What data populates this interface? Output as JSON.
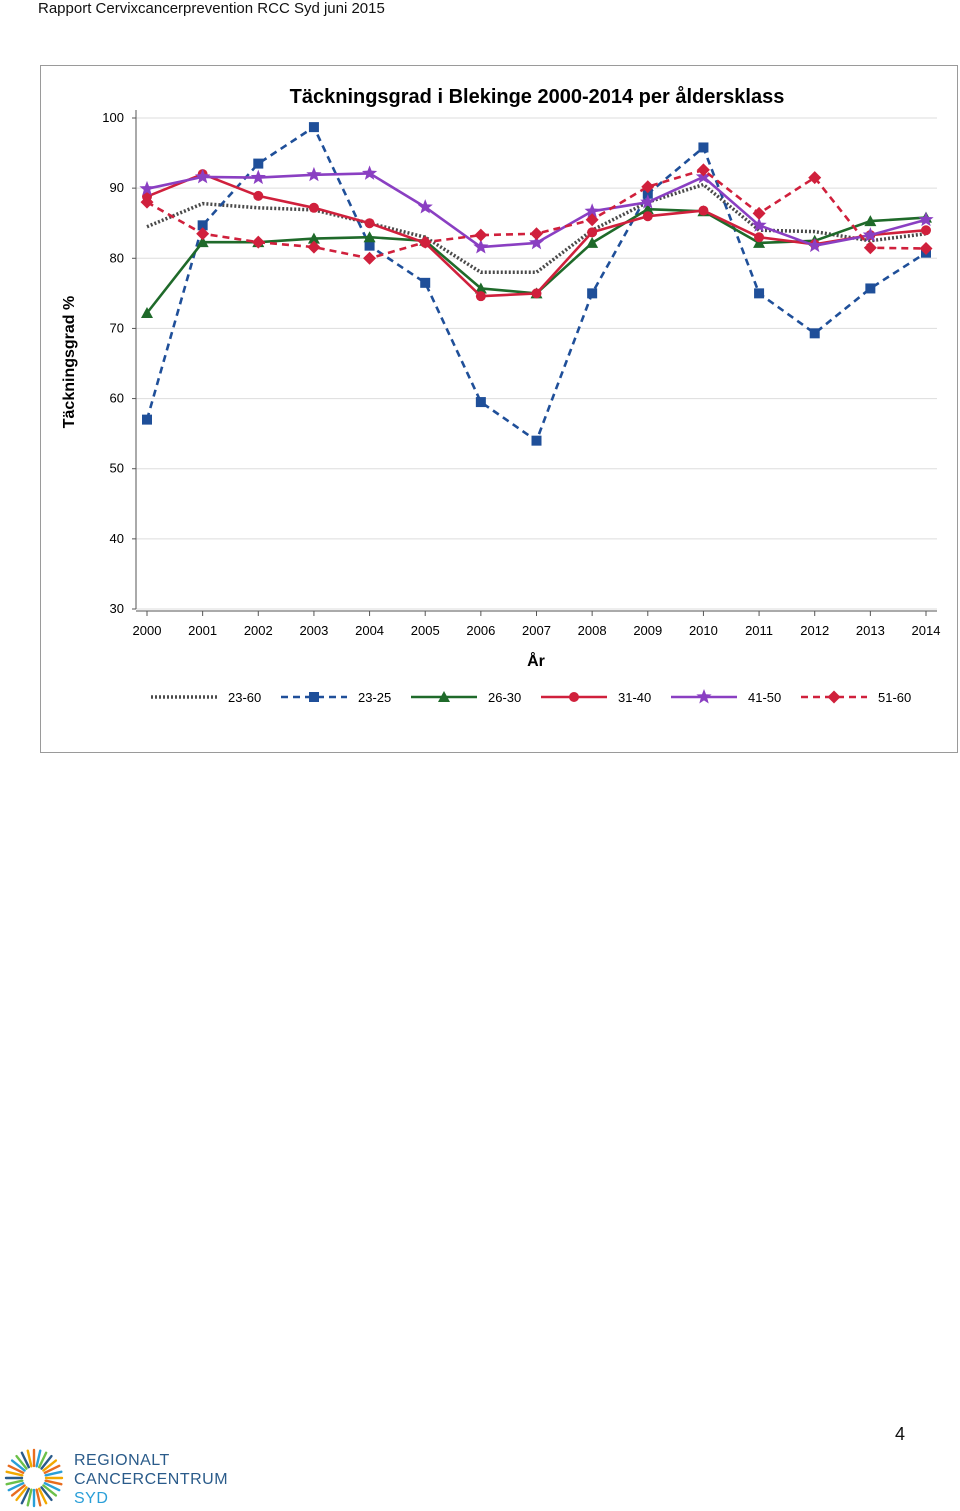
{
  "header": {
    "running_title": "Rapport Cervixcancerprevention RCC Syd juni 2015"
  },
  "footer": {
    "page_number": "4",
    "logo_line1": "REGIONALT",
    "logo_line2": "CANCERCENTRUM",
    "logo_line3": "SYD"
  },
  "chart_data": {
    "type": "line",
    "title": "Täckningsgrad i Blekinge 2000-2014 per åldersklass",
    "xlabel": "År",
    "ylabel": "Täckningsgrad %",
    "ylim": [
      30,
      100
    ],
    "yticks": [
      30,
      40,
      50,
      60,
      70,
      80,
      90,
      100
    ],
    "grid": true,
    "legend_position": "bottom",
    "categories": [
      "2000",
      "2001",
      "2002",
      "2003",
      "2004",
      "2005",
      "2006",
      "2007",
      "2008",
      "2009",
      "2010",
      "2011",
      "2012",
      "2013",
      "2014"
    ],
    "series": [
      {
        "name": "23-60",
        "color": "#4a4a4a",
        "dash": "dotted",
        "marker": "none",
        "values": [
          84.5,
          87.8,
          87.2,
          86.9,
          85.0,
          83.0,
          78.0,
          78.0,
          84.0,
          88.0,
          90.5,
          84.0,
          83.8,
          82.5,
          83.5
        ]
      },
      {
        "name": "23-25",
        "color": "#1f4f99",
        "dash": "dashed",
        "marker": "square",
        "values": [
          57.0,
          84.7,
          93.5,
          98.7,
          81.8,
          76.5,
          59.5,
          54.0,
          75.0,
          89.2,
          95.8,
          75.0,
          69.3,
          75.7,
          80.8
        ]
      },
      {
        "name": "26-30",
        "color": "#1f6a2a",
        "dash": "solid",
        "marker": "triangle",
        "values": [
          72.2,
          82.3,
          82.3,
          82.8,
          83.0,
          82.5,
          75.7,
          75.0,
          82.2,
          87.0,
          86.7,
          82.2,
          82.5,
          85.3,
          85.8
        ]
      },
      {
        "name": "31-40",
        "color": "#d0203c",
        "dash": "solid",
        "marker": "circle",
        "values": [
          88.8,
          92.0,
          88.9,
          87.2,
          85.0,
          82.2,
          74.6,
          75.0,
          83.7,
          86.0,
          86.8,
          83.0,
          82.0,
          83.3,
          84.0
        ]
      },
      {
        "name": "41-50",
        "color": "#8a3fc2",
        "dash": "solid",
        "marker": "star",
        "values": [
          89.9,
          91.6,
          91.5,
          91.9,
          92.1,
          87.3,
          81.6,
          82.2,
          86.7,
          88.0,
          91.6,
          84.7,
          81.8,
          83.3,
          85.5
        ]
      },
      {
        "name": "51-60",
        "color": "#d0203c",
        "dash": "dashed",
        "marker": "diamond",
        "values": [
          88.0,
          83.5,
          82.3,
          81.6,
          80.0,
          82.3,
          83.3,
          83.5,
          85.5,
          90.2,
          92.6,
          86.4,
          91.5,
          81.5,
          81.4
        ]
      }
    ]
  }
}
